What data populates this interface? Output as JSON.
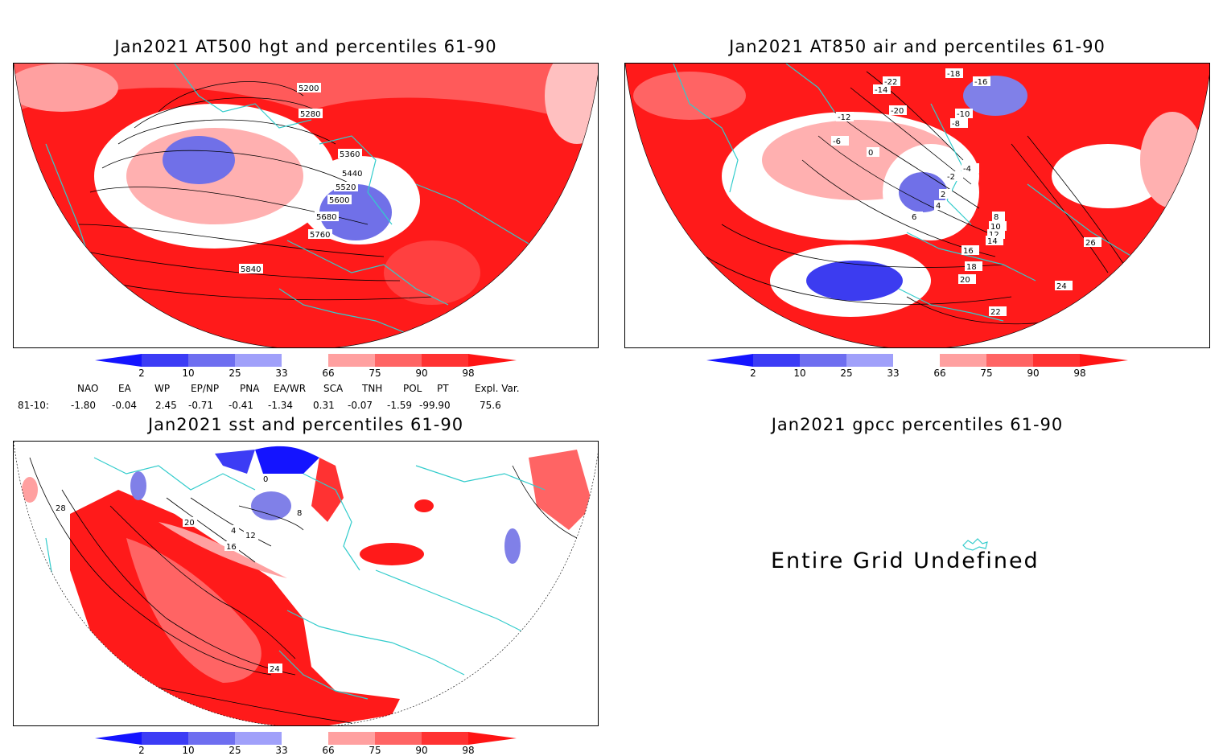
{
  "panels": {
    "hgt500": {
      "title": "Jan2021 AT500 hgt and percentiles 61-90",
      "contour_labels": [
        "5200",
        "5280",
        "5360",
        "5440",
        "5520",
        "5600",
        "5680",
        "5760",
        "5840"
      ]
    },
    "air850": {
      "title": "Jan2021 AT850 air and percentiles 61-90",
      "contour_labels": [
        "-22",
        "-20",
        "-18",
        "-16",
        "-14",
        "-12",
        "-10",
        "-8",
        "-6",
        "-4",
        "-2",
        "0",
        "2",
        "4",
        "6",
        "8",
        "10",
        "12",
        "14",
        "16",
        "18",
        "20",
        "22",
        "24",
        "26"
      ]
    },
    "sst": {
      "title": "Jan2021 sst and percentiles 61-90",
      "contour_labels": [
        "0",
        "4",
        "8",
        "12",
        "16",
        "20",
        "24",
        "28"
      ]
    },
    "gpcc": {
      "title": "Jan2021 gpcc percentiles 61-90",
      "message": "Entire Grid Undefined"
    }
  },
  "colorbar": {
    "labels": [
      "2",
      "10",
      "25",
      "33",
      "66",
      "75",
      "90",
      "98"
    ],
    "colors": [
      "#1414ff",
      "#3c3cf5",
      "#6e6ef0",
      "#a0a0fa",
      "#ffffff",
      "#ffa0a0",
      "#ff6464",
      "#ff3232",
      "#ff1414"
    ]
  },
  "indices": {
    "header": [
      "NAO",
      "EA",
      "WP",
      "EP/NP",
      "PNA",
      "EA/WR",
      "SCA",
      "TNH",
      "POL",
      "PT",
      "Expl. Var."
    ],
    "row_label": "81-10:",
    "values": [
      "-1.80",
      "-0.04",
      "2.45",
      "-0.71",
      "-0.41",
      "-1.34",
      "0.31",
      "-0.07",
      "-1.59",
      "-99.90",
      "75.6"
    ]
  }
}
